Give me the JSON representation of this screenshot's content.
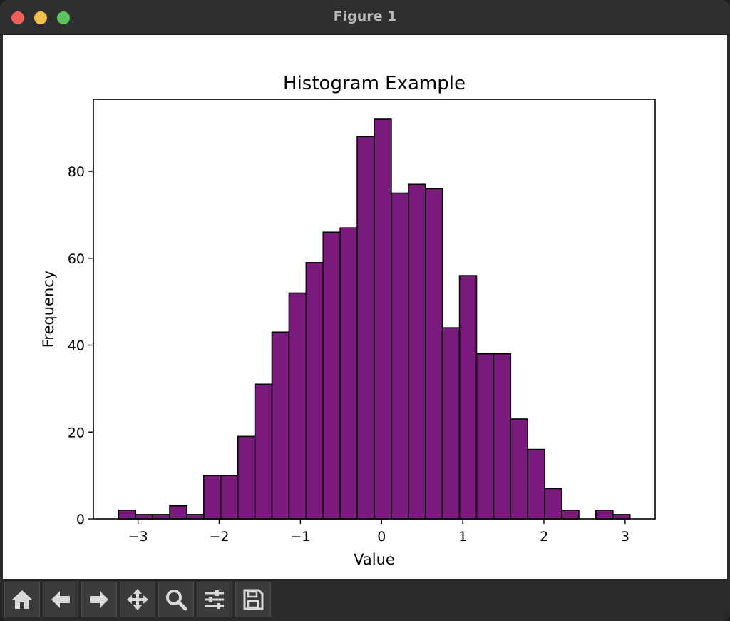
{
  "window": {
    "title": "Figure 1"
  },
  "toolbar": {
    "buttons": [
      {
        "name": "home-button",
        "icon": "home-icon"
      },
      {
        "name": "back-button",
        "icon": "arrow-left-icon"
      },
      {
        "name": "forward-button",
        "icon": "arrow-right-icon"
      },
      {
        "name": "pan-button",
        "icon": "move-icon"
      },
      {
        "name": "zoom-button",
        "icon": "magnifier-icon"
      },
      {
        "name": "configure-subplots-button",
        "icon": "sliders-icon"
      },
      {
        "name": "save-button",
        "icon": "floppy-disk-icon"
      }
    ]
  },
  "chart_data": {
    "type": "bar",
    "title": "Histogram Example",
    "xlabel": "Value",
    "ylabel": "Frequency",
    "bin_edges": [
      -3.24,
      -3.03,
      -2.82,
      -2.61,
      -2.4,
      -2.19,
      -1.98,
      -1.77,
      -1.56,
      -1.35,
      -1.14,
      -0.93,
      -0.72,
      -0.51,
      -0.3,
      -0.09,
      0.12,
      0.33,
      0.54,
      0.75,
      0.96,
      1.17,
      1.38,
      1.59,
      1.8,
      2.01,
      2.22,
      2.43,
      2.64,
      2.85,
      3.06
    ],
    "values": [
      2,
      1,
      1,
      3,
      1,
      10,
      10,
      19,
      31,
      43,
      52,
      59,
      66,
      67,
      88,
      92,
      75,
      77,
      76,
      44,
      56,
      38,
      38,
      23,
      16,
      7,
      2,
      0,
      2,
      1
    ],
    "xlim": [
      -3.55,
      3.37
    ],
    "ylim": [
      0,
      96.6
    ],
    "xticks": [
      -3,
      -2,
      -1,
      0,
      1,
      2,
      3
    ],
    "xtick_labels": [
      "−3",
      "−2",
      "−1",
      "0",
      "1",
      "2",
      "3"
    ],
    "yticks": [
      0,
      20,
      40,
      60,
      80
    ],
    "ytick_labels": [
      "0",
      "20",
      "40",
      "60",
      "80"
    ],
    "bar_color": "#7b1a7d",
    "edge_color": "#000000",
    "grid": false
  }
}
